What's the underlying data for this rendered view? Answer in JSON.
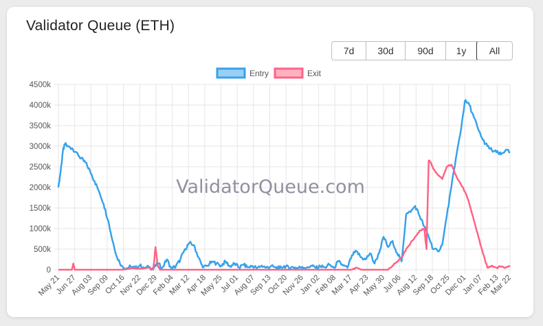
{
  "title": "Validator Queue (ETH)",
  "range_buttons": [
    "7d",
    "30d",
    "90d",
    "1y",
    "All"
  ],
  "active_range": "All",
  "watermark": "ValidatorQueue.com",
  "colors": {
    "entry": "#36a2eb",
    "exit": "#ff6384",
    "entry_fill": "#9ad0f5",
    "exit_fill": "#ffb1c1"
  },
  "chart_data": {
    "type": "line",
    "title": "Validator Queue (ETH)",
    "xlabel": "",
    "ylabel": "",
    "ylim": [
      0,
      4500000
    ],
    "yticks": [
      {
        "value": 0,
        "label": "0"
      },
      {
        "value": 500000,
        "label": "500k"
      },
      {
        "value": 1000000,
        "label": "1000k"
      },
      {
        "value": 1500000,
        "label": "1500k"
      },
      {
        "value": 2000000,
        "label": "2000k"
      },
      {
        "value": 2500000,
        "label": "2500k"
      },
      {
        "value": 3000000,
        "label": "3000k"
      },
      {
        "value": 3500000,
        "label": "3500k"
      },
      {
        "value": 4000000,
        "label": "4000k"
      },
      {
        "value": 4500000,
        "label": "4500k"
      }
    ],
    "xlim": [
      0,
      100
    ],
    "xticks": [
      {
        "x": 0,
        "label": "May 21"
      },
      {
        "x": 3.6,
        "label": "Jun 27"
      },
      {
        "x": 7.2,
        "label": "Aug 03"
      },
      {
        "x": 10.8,
        "label": "Sep 09"
      },
      {
        "x": 14.4,
        "label": "Oct 16"
      },
      {
        "x": 18.0,
        "label": "Nov 22"
      },
      {
        "x": 21.6,
        "label": "Dec 29"
      },
      {
        "x": 25.2,
        "label": "Feb 04"
      },
      {
        "x": 28.8,
        "label": "Mar 12"
      },
      {
        "x": 32.4,
        "label": "Apr 18"
      },
      {
        "x": 36.0,
        "label": "May 25"
      },
      {
        "x": 39.6,
        "label": "Jul 01"
      },
      {
        "x": 43.2,
        "label": "Aug 07"
      },
      {
        "x": 46.8,
        "label": "Sep 13"
      },
      {
        "x": 50.4,
        "label": "Oct 20"
      },
      {
        "x": 54.0,
        "label": "Nov 26"
      },
      {
        "x": 57.6,
        "label": "Jan 02"
      },
      {
        "x": 61.2,
        "label": "Feb 08"
      },
      {
        "x": 64.8,
        "label": "Mar 17"
      },
      {
        "x": 68.4,
        "label": "Apr 23"
      },
      {
        "x": 72.0,
        "label": "May 30"
      },
      {
        "x": 75.6,
        "label": "Jul 06"
      },
      {
        "x": 79.2,
        "label": "Aug 12"
      },
      {
        "x": 82.8,
        "label": "Sep 18"
      },
      {
        "x": 86.4,
        "label": "Oct 25"
      },
      {
        "x": 90.0,
        "label": "Dec 01"
      },
      {
        "x": 93.6,
        "label": "Jan 07"
      },
      {
        "x": 97.2,
        "label": "Feb 13"
      },
      {
        "x": 100,
        "label": "Mar 22"
      }
    ],
    "legend": {
      "position": "top",
      "entries": [
        "Entry",
        "Exit"
      ]
    },
    "series": [
      {
        "name": "Entry",
        "x": [
          0,
          0.5,
          1,
          1.5,
          2,
          3,
          4,
          5,
          6,
          7,
          8,
          9,
          10,
          11,
          12,
          13,
          14,
          15,
          16,
          17,
          18,
          19,
          20,
          21,
          22,
          23,
          24,
          25,
          26,
          27,
          28,
          29,
          30,
          31,
          32,
          33,
          34,
          35,
          36,
          37,
          38,
          39,
          40,
          41,
          42,
          43,
          44,
          45,
          46,
          47,
          48,
          49,
          50,
          51,
          52,
          53,
          54,
          55,
          56,
          57,
          58,
          59,
          60,
          61,
          62,
          63,
          64,
          65,
          66,
          67,
          68,
          69,
          70,
          71,
          72,
          73,
          74,
          75,
          76,
          77,
          78,
          79,
          80,
          81,
          82,
          83,
          84,
          85,
          86,
          87,
          88,
          89,
          90,
          91,
          92,
          93,
          94,
          95,
          96,
          97,
          98,
          99,
          100
        ],
        "values": [
          2000000,
          2400000,
          2900000,
          3050000,
          3000000,
          2950000,
          2850000,
          2700000,
          2600000,
          2400000,
          2150000,
          1900000,
          1600000,
          1200000,
          700000,
          300000,
          100000,
          30000,
          80000,
          40000,
          100000,
          50000,
          60000,
          30000,
          150000,
          50000,
          250000,
          30000,
          80000,
          250000,
          500000,
          650000,
          600000,
          300000,
          50000,
          100000,
          200000,
          150000,
          100000,
          200000,
          80000,
          150000,
          50000,
          120000,
          60000,
          90000,
          40000,
          100000,
          50000,
          80000,
          60000,
          40000,
          90000,
          50000,
          60000,
          40000,
          70000,
          50000,
          100000,
          40000,
          80000,
          60000,
          120000,
          50000,
          200000,
          100000,
          50000,
          350000,
          450000,
          300000,
          250000,
          400000,
          150000,
          400000,
          800000,
          550000,
          700000,
          400000,
          200000,
          1350000,
          1400000,
          1550000,
          1300000,
          1050000,
          800000,
          500000,
          450000,
          600000,
          1300000,
          2000000,
          2700000,
          3300000,
          4100000,
          4000000,
          3700000,
          3400000,
          3150000,
          3000000,
          2900000,
          2850000,
          2800000,
          2900000,
          2850000
        ],
        "color": "#36a2eb"
      },
      {
        "name": "Exit",
        "x": [
          0,
          2,
          3,
          3.3,
          3.6,
          4,
          10,
          14,
          20,
          21,
          21.5,
          22,
          22.5,
          23,
          30,
          35,
          40,
          45,
          50,
          55,
          60,
          65,
          66,
          67,
          70,
          73,
          74,
          75,
          76,
          77,
          78,
          79,
          80,
          81,
          81.5,
          82,
          82.5,
          83,
          84,
          85,
          86,
          87,
          88,
          89,
          90,
          91,
          92,
          93,
          94,
          95,
          96,
          97,
          98,
          99,
          100
        ],
        "values": [
          0,
          0,
          0,
          150000,
          0,
          0,
          0,
          0,
          50000,
          0,
          550000,
          100000,
          0,
          0,
          0,
          0,
          0,
          0,
          0,
          0,
          0,
          0,
          50000,
          0,
          0,
          0,
          100000,
          200000,
          300000,
          500000,
          650000,
          800000,
          950000,
          1000000,
          500000,
          2650000,
          2600000,
          2450000,
          2300000,
          2200000,
          2500000,
          2550000,
          2300000,
          2100000,
          1900000,
          1600000,
          1200000,
          800000,
          400000,
          50000,
          100000,
          50000,
          80000,
          50000,
          100000
        ],
        "color": "#ff6384"
      }
    ]
  }
}
